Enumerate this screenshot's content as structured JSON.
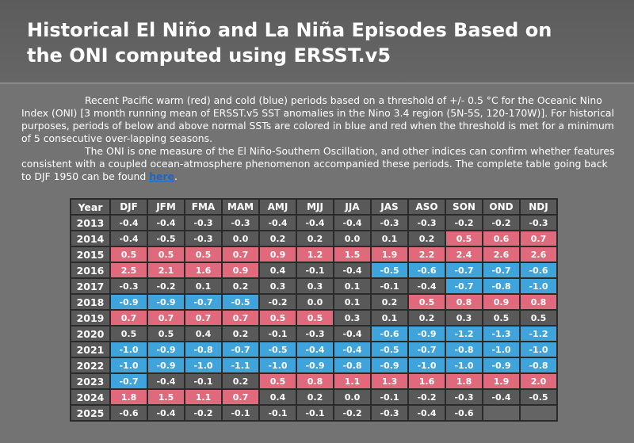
{
  "header": {
    "title": "Historical El Niño and La Niña Episodes Based on the ONI computed using ERSST.v5"
  },
  "intro": {
    "paragraph1": "Recent Pacific warm (red) and cold (blue) periods based on a threshold of +/- 0.5 °C for the Oceanic Nino Index (ONI) [3 month running mean of ERSST.v5 SST anomalies in the Nino 3.4 region (5N-5S, 120-170W)]. For historical purposes, periods of below and above normal SSTs are colored in blue and red when the threshold is met for a minimum of 5 consecutive over-lapping seasons.",
    "paragraph2": "The ONI is one measure of the El Niño-Southern Oscillation, and other indices can confirm whether features consistent with a coupled ocean-atmosphere phenomenon accompanied these periods. The complete table going back to DJF 1950 can be found ",
    "link": "here",
    "paragraph2_end": "."
  },
  "table": {
    "columns": [
      "Year",
      "DJF",
      "JFM",
      "FMA",
      "MAM",
      "AMJ",
      "MJJ",
      "JJA",
      "JAS",
      "ASO",
      "SON",
      "OND",
      "NDJ"
    ],
    "rows": [
      {
        "year": "2013",
        "values": [
          "-0.4",
          "-0.4",
          "-0.3",
          "-0.3",
          "-0.4",
          "-0.4",
          "-0.4",
          "-0.3",
          "-0.3",
          "-0.2",
          "-0.2",
          "-0.3"
        ],
        "colors": [
          "#595959",
          "#595959",
          "#595959",
          "#595959",
          "#595959",
          "#595959",
          "#595959",
          "#595959",
          "#595959",
          "#595959",
          "#595959",
          "#595959"
        ]
      },
      {
        "year": "2014",
        "values": [
          "-0.4",
          "-0.5",
          "-0.3",
          "0.0",
          "0.2",
          "0.2",
          "0.0",
          "0.1",
          "0.2",
          "0.5",
          "0.6",
          "0.7"
        ],
        "colors": [
          "#595959",
          "#595959",
          "#595959",
          "#595959",
          "#595959",
          "#595959",
          "#595959",
          "#595959",
          "#595959",
          "#e06a7b",
          "#e06a7b",
          "#e06a7b"
        ]
      },
      {
        "year": "2015",
        "values": [
          "0.5",
          "0.5",
          "0.5",
          "0.7",
          "0.9",
          "1.2",
          "1.5",
          "1.9",
          "2.2",
          "2.4",
          "2.6",
          "2.6"
        ],
        "colors": [
          "#e06a7b",
          "#e06a7b",
          "#e06a7b",
          "#e06a7b",
          "#e06a7b",
          "#e06a7b",
          "#e06a7b",
          "#e06a7b",
          "#e06a7b",
          "#e06a7b",
          "#e06a7b",
          "#e06a7b"
        ]
      },
      {
        "year": "2016",
        "values": [
          "2.5",
          "2.1",
          "1.6",
          "0.9",
          "0.4",
          "-0.1",
          "-0.4",
          "-0.5",
          "-0.6",
          "-0.7",
          "-0.7",
          "-0.6"
        ],
        "colors": [
          "#e06a7b",
          "#e06a7b",
          "#e06a7b",
          "#e06a7b",
          "#595959",
          "#595959",
          "#595959",
          "#3fa4dc",
          "#3fa4dc",
          "#3fa4dc",
          "#3fa4dc",
          "#3fa4dc"
        ]
      },
      {
        "year": "2017",
        "values": [
          "-0.3",
          "-0.2",
          "0.1",
          "0.2",
          "0.3",
          "0.3",
          "0.1",
          "-0.1",
          "-0.4",
          "-0.7",
          "-0.8",
          "-1.0"
        ],
        "colors": [
          "#595959",
          "#595959",
          "#595959",
          "#595959",
          "#595959",
          "#595959",
          "#595959",
          "#595959",
          "#595959",
          "#3fa4dc",
          "#3fa4dc",
          "#3fa4dc"
        ]
      },
      {
        "year": "2018",
        "values": [
          "-0.9",
          "-0.9",
          "-0.7",
          "-0.5",
          "-0.2",
          "0.0",
          "0.1",
          "0.2",
          "0.5",
          "0.8",
          "0.9",
          "0.8"
        ],
        "colors": [
          "#3fa4dc",
          "#3fa4dc",
          "#3fa4dc",
          "#3fa4dc",
          "#595959",
          "#595959",
          "#595959",
          "#595959",
          "#e06a7b",
          "#e06a7b",
          "#e06a7b",
          "#e06a7b"
        ]
      },
      {
        "year": "2019",
        "values": [
          "0.7",
          "0.7",
          "0.7",
          "0.7",
          "0.5",
          "0.5",
          "0.3",
          "0.1",
          "0.2",
          "0.3",
          "0.5",
          "0.5"
        ],
        "colors": [
          "#e06a7b",
          "#e06a7b",
          "#e06a7b",
          "#e06a7b",
          "#e06a7b",
          "#e06a7b",
          "#595959",
          "#595959",
          "#595959",
          "#595959",
          "#595959",
          "#595959"
        ]
      },
      {
        "year": "2020",
        "values": [
          "0.5",
          "0.5",
          "0.4",
          "0.2",
          "-0.1",
          "-0.3",
          "-0.4",
          "-0.6",
          "-0.9",
          "-1.2",
          "-1.3",
          "-1.2"
        ],
        "colors": [
          "#595959",
          "#595959",
          "#595959",
          "#595959",
          "#595959",
          "#595959",
          "#595959",
          "#3fa4dc",
          "#3fa4dc",
          "#3fa4dc",
          "#3fa4dc",
          "#3fa4dc"
        ]
      },
      {
        "year": "2021",
        "values": [
          "-1.0",
          "-0.9",
          "-0.8",
          "-0.7",
          "-0.5",
          "-0.4",
          "-0.4",
          "-0.5",
          "-0.7",
          "-0.8",
          "-1.0",
          "-1.0"
        ],
        "colors": [
          "#3fa4dc",
          "#3fa4dc",
          "#3fa4dc",
          "#3fa4dc",
          "#3fa4dc",
          "#3fa4dc",
          "#3fa4dc",
          "#3fa4dc",
          "#3fa4dc",
          "#3fa4dc",
          "#3fa4dc",
          "#3fa4dc"
        ]
      },
      {
        "year": "2022",
        "values": [
          "-1.0",
          "-0.9",
          "-1.0",
          "-1.1",
          "-1.0",
          "-0.9",
          "-0.8",
          "-0.9",
          "-1.0",
          "-1.0",
          "-0.9",
          "-0.8"
        ],
        "colors": [
          "#3fa4dc",
          "#3fa4dc",
          "#3fa4dc",
          "#3fa4dc",
          "#3fa4dc",
          "#3fa4dc",
          "#3fa4dc",
          "#3fa4dc",
          "#3fa4dc",
          "#3fa4dc",
          "#3fa4dc",
          "#3fa4dc"
        ]
      },
      {
        "year": "2023",
        "values": [
          "-0.7",
          "-0.4",
          "-0.1",
          "0.2",
          "0.5",
          "0.8",
          "1.1",
          "1.3",
          "1.6",
          "1.8",
          "1.9",
          "2.0"
        ],
        "colors": [
          "#3fa4dc",
          "#595959",
          "#595959",
          "#595959",
          "#e06a7b",
          "#e06a7b",
          "#e06a7b",
          "#e06a7b",
          "#e06a7b",
          "#e06a7b",
          "#e06a7b",
          "#e06a7b"
        ]
      },
      {
        "year": "2024",
        "values": [
          "1.8",
          "1.5",
          "1.1",
          "0.7",
          "0.4",
          "0.2",
          "0.0",
          "-0.1",
          "-0.2",
          "-0.3",
          "-0.4",
          "-0.5"
        ],
        "colors": [
          "#e06a7b",
          "#e06a7b",
          "#e06a7b",
          "#e06a7b",
          "#595959",
          "#595959",
          "#595959",
          "#595959",
          "#595959",
          "#595959",
          "#595959",
          "#595959"
        ]
      },
      {
        "year": "2025",
        "values": [
          "-0.6",
          "-0.4",
          "-0.2",
          "-0.1",
          "-0.1",
          "-0.1",
          "-0.2",
          "-0.3",
          "-0.4",
          "-0.6"
        ],
        "colors": [
          "#595959",
          "#595959",
          "#595959",
          "#595959",
          "#595959",
          "#595959",
          "#595959",
          "#595959",
          "#595959",
          "#595959"
        ]
      }
    ]
  }
}
